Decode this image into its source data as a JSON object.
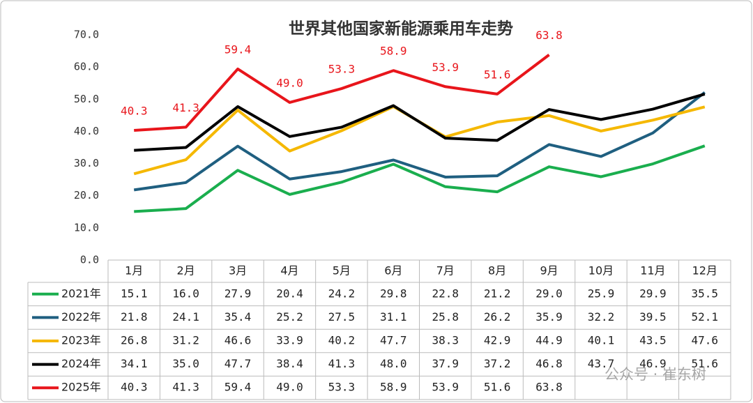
{
  "chart_data": {
    "type": "line",
    "title": "世界其他国家新能源乘用车走势",
    "categories": [
      "1月",
      "2月",
      "3月",
      "4月",
      "5月",
      "6月",
      "7月",
      "8月",
      "9月",
      "10月",
      "11月",
      "12月"
    ],
    "ylim": [
      0,
      70
    ],
    "yticks": [
      {
        "value": 0,
        "label": "0.0"
      },
      {
        "value": 10,
        "label": "10.0"
      },
      {
        "value": 20,
        "label": "20.0"
      },
      {
        "value": 30,
        "label": "30.0"
      },
      {
        "value": 40,
        "label": "40.0"
      },
      {
        "value": 50,
        "label": "50.0"
      },
      {
        "value": 60,
        "label": "60.0"
      },
      {
        "value": 70,
        "label": "70.0"
      }
    ],
    "series": [
      {
        "name": "2021年",
        "color": "#1aae4e",
        "values": [
          15.1,
          16.0,
          27.9,
          20.4,
          24.2,
          29.8,
          22.8,
          21.2,
          29.0,
          25.9,
          29.9,
          35.5
        ],
        "value_labels": [
          "15.1",
          "16.0",
          "27.9",
          "20.4",
          "24.2",
          "29.8",
          "22.8",
          "21.2",
          "29.0",
          "25.9",
          "29.9",
          "35.5"
        ]
      },
      {
        "name": "2022年",
        "color": "#1f5f80",
        "values": [
          21.8,
          24.1,
          35.4,
          25.2,
          27.5,
          31.1,
          25.8,
          26.2,
          35.9,
          32.2,
          39.5,
          52.1
        ],
        "value_labels": [
          "21.8",
          "24.1",
          "35.4",
          "25.2",
          "27.5",
          "31.1",
          "25.8",
          "26.2",
          "35.9",
          "32.2",
          "39.5",
          "52.1"
        ]
      },
      {
        "name": "2023年",
        "color": "#f5b800",
        "values": [
          26.8,
          31.2,
          46.6,
          33.9,
          40.2,
          47.7,
          38.3,
          42.9,
          44.9,
          40.1,
          43.5,
          47.6
        ],
        "value_labels": [
          "26.8",
          "31.2",
          "46.6",
          "33.9",
          "40.2",
          "47.7",
          "38.3",
          "42.9",
          "44.9",
          "40.1",
          "43.5",
          "47.6"
        ]
      },
      {
        "name": "2024年",
        "color": "#000000",
        "values": [
          34.1,
          35.0,
          47.7,
          38.4,
          41.3,
          48.0,
          37.9,
          37.2,
          46.8,
          43.7,
          46.9,
          51.6
        ],
        "value_labels": [
          "34.1",
          "35.0",
          "47.7",
          "38.4",
          "41.3",
          "48.0",
          "37.9",
          "37.2",
          "46.8",
          "43.7",
          "46.9",
          "51.6"
        ]
      },
      {
        "name": "2025年",
        "color": "#e8151b",
        "values": [
          40.3,
          41.3,
          59.4,
          49.0,
          53.3,
          58.9,
          53.9,
          51.6,
          63.8,
          null,
          null,
          null
        ],
        "value_labels": [
          "40.3",
          "41.3",
          "59.4",
          "49.0",
          "53.3",
          "58.9",
          "53.9",
          "51.6",
          "63.8",
          null,
          null,
          null
        ],
        "data_labels": true
      }
    ],
    "watermark": "公众号 · 崔东树"
  }
}
